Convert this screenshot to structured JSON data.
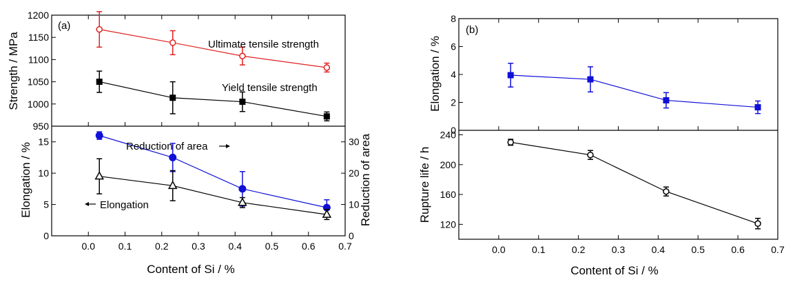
{
  "figure": {
    "xlabel_a": "Content of Si / %",
    "xlabel_b": "Content of Si  / %",
    "x_ticks": [
      "0.0",
      "0.1",
      "0.2",
      "0.3",
      "0.4",
      "0.5",
      "0.6",
      "0.7"
    ]
  },
  "colors": {
    "red": "#e02020",
    "blue": "#1010d8",
    "black": "#000000"
  },
  "chart_data": [
    {
      "panel": "(a) top",
      "type": "line",
      "label": "(a)",
      "xlim": [
        -0.1,
        0.7
      ],
      "ylim": [
        950,
        1200
      ],
      "ylabel": "Strength / MPa",
      "yticks": [
        "950",
        "1000",
        "1050",
        "1100",
        "1150",
        "1200"
      ],
      "x": [
        0.03,
        0.23,
        0.42,
        0.65
      ],
      "series": [
        {
          "name": "Ultimate tensile strength",
          "marker": "open-circle",
          "color": "#e02020",
          "values": [
            1168,
            1138,
            1108,
            1082
          ],
          "errors": [
            40,
            27,
            20,
            10
          ]
        },
        {
          "name": "Yield tensile strength",
          "marker": "filled-square",
          "color": "#000000",
          "values": [
            1050,
            1014,
            1005,
            972
          ],
          "errors": [
            24,
            36,
            22,
            10
          ]
        }
      ]
    },
    {
      "panel": "(a) bottom",
      "type": "line",
      "xlim": [
        -0.1,
        0.7
      ],
      "ylim": [
        0,
        17.5
      ],
      "y2lim": [
        0,
        35
      ],
      "ylabel": "Elongation / %",
      "y2label": "Reduction of area",
      "yticks": [
        "0",
        "5",
        "10",
        "15"
      ],
      "y2ticks": [
        "0",
        "10",
        "20",
        "30"
      ],
      "x": [
        0.03,
        0.23,
        0.42,
        0.65
      ],
      "series": [
        {
          "name": "Reduction of area",
          "axis": "right",
          "marker": "filled-circle",
          "color": "#1010d8",
          "values": [
            32,
            25,
            15,
            9
          ],
          "errors": [
            1.2,
            4.5,
            5.5,
            2.5
          ]
        },
        {
          "name": "Elongation",
          "axis": "left",
          "marker": "open-triangle",
          "color": "#000000",
          "values": [
            9.5,
            8.0,
            5.3,
            3.4
          ],
          "errors": [
            2.8,
            2.4,
            0.8,
            0.8
          ]
        }
      ],
      "annotations": [
        {
          "text": "Reduction of area",
          "arrow": "right"
        },
        {
          "text": "Elongation",
          "arrow": "left"
        }
      ]
    },
    {
      "panel": "(b) top",
      "type": "line",
      "label": "(b)",
      "xlim": [
        -0.1,
        0.7
      ],
      "ylim": [
        0,
        8
      ],
      "ylabel": "Elongation / %",
      "yticks": [
        "0",
        "2",
        "4",
        "6",
        "8"
      ],
      "x": [
        0.03,
        0.23,
        0.42,
        0.65
      ],
      "series": [
        {
          "marker": "filled-square",
          "color": "#1010d8",
          "values": [
            3.95,
            3.65,
            2.15,
            1.65
          ],
          "errors": [
            0.85,
            0.9,
            0.55,
            0.45
          ]
        }
      ]
    },
    {
      "panel": "(b) bottom",
      "type": "line",
      "xlim": [
        -0.1,
        0.7
      ],
      "ylim": [
        100,
        246
      ],
      "ylabel": "Rupture life / h",
      "yticks": [
        "120",
        "160",
        "200",
        "240"
      ],
      "x": [
        0.03,
        0.23,
        0.42,
        0.65
      ],
      "series": [
        {
          "marker": "open-circle",
          "color": "#000000",
          "values": [
            230,
            213,
            164,
            121
          ],
          "errors": [
            4,
            6,
            6,
            7
          ]
        }
      ]
    }
  ]
}
